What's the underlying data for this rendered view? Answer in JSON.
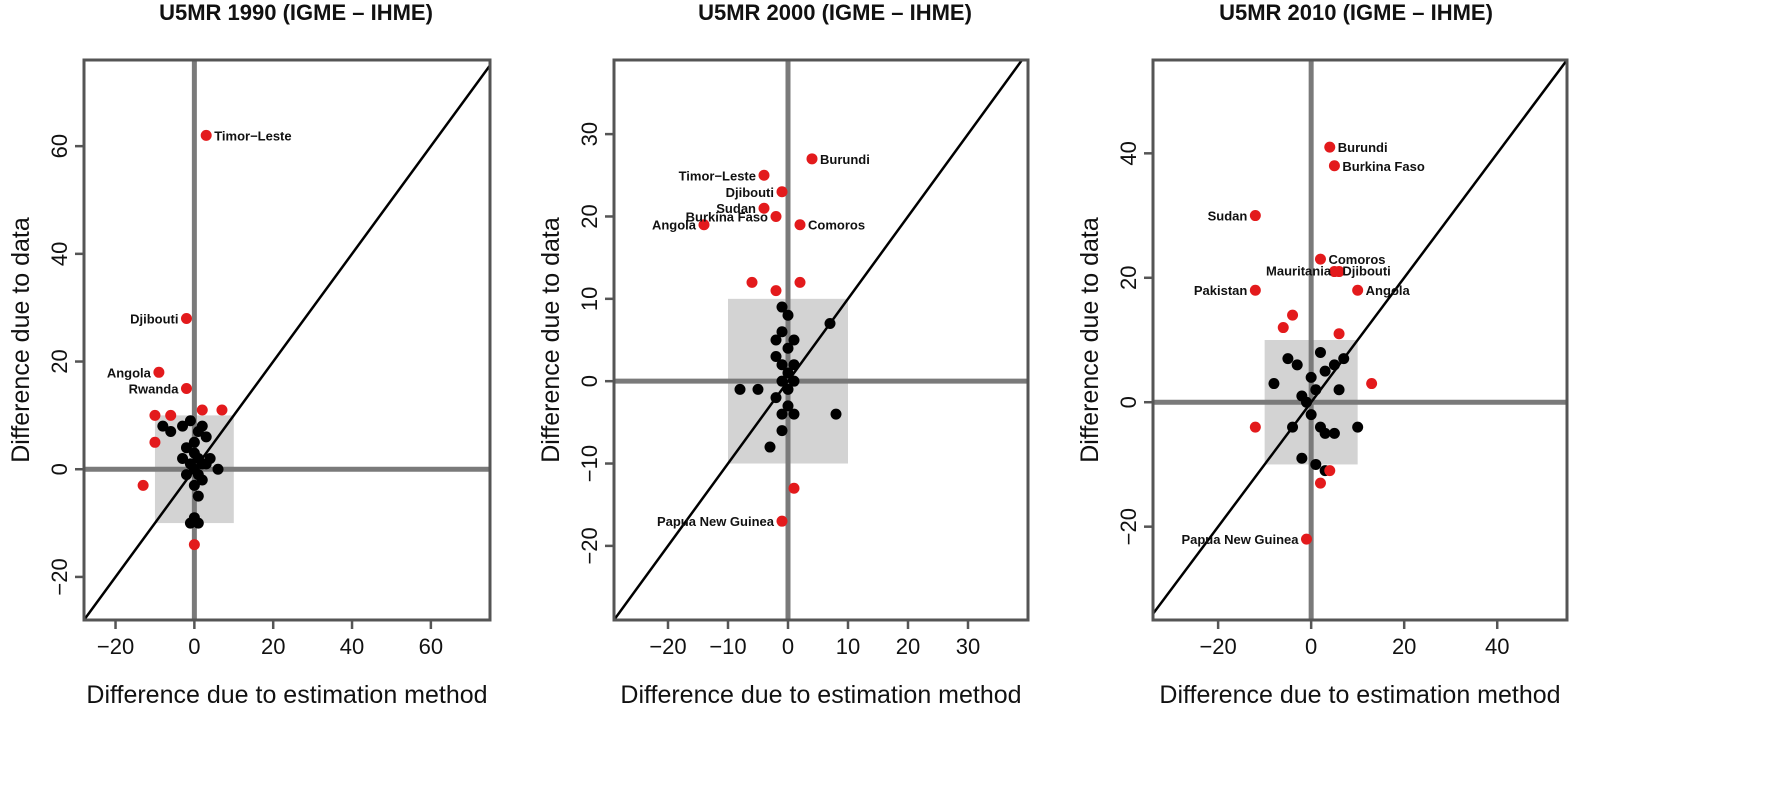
{
  "chart_data": [
    {
      "type": "scatter",
      "title": "U5MR 1990 (IGME – IHME)",
      "xlabel": "Difference due to estimation method",
      "ylabel": "Difference due to data",
      "xlim": [
        -28,
        75
      ],
      "ylim": [
        -28,
        76
      ],
      "xticks": [
        -20,
        0,
        20,
        40,
        60
      ],
      "yticks": [
        -20,
        0,
        20,
        40,
        60
      ],
      "box": {
        "x": [
          -10,
          10
        ],
        "y": [
          -10,
          10
        ]
      },
      "series": [
        {
          "color": "#000000",
          "points": [
            [
              -8,
              8
            ],
            [
              -6,
              7
            ],
            [
              -3,
              8
            ],
            [
              -1,
              9
            ],
            [
              0,
              5
            ],
            [
              1,
              7
            ],
            [
              2,
              8
            ],
            [
              3,
              6
            ],
            [
              -2,
              4
            ],
            [
              0,
              3
            ],
            [
              1,
              2
            ],
            [
              2,
              1
            ],
            [
              -1,
              1
            ],
            [
              0,
              0
            ],
            [
              1,
              -1
            ],
            [
              -2,
              -1
            ],
            [
              3,
              1
            ],
            [
              4,
              2
            ],
            [
              2,
              -2
            ],
            [
              1,
              -5
            ],
            [
              0,
              -9
            ],
            [
              -1,
              -10
            ],
            [
              1,
              -10
            ],
            [
              6,
              0
            ],
            [
              0,
              -3
            ],
            [
              -3,
              2
            ]
          ]
        },
        {
          "color": "#e31a1c",
          "points": [
            [
              3,
              62
            ],
            [
              -2,
              28
            ],
            [
              -9,
              18
            ],
            [
              -2,
              15
            ],
            [
              -10,
              10
            ],
            [
              -6,
              10
            ],
            [
              2,
              11
            ],
            [
              7,
              11
            ],
            [
              -10,
              5
            ],
            [
              -13,
              -3
            ],
            [
              0,
              -14
            ]
          ]
        }
      ],
      "annotations": [
        {
          "text": "Timor−Leste",
          "x": 3,
          "y": 62
        },
        {
          "text": "Djibouti",
          "x": -2,
          "y": 28
        },
        {
          "text": "Angola",
          "x": -9,
          "y": 18
        },
        {
          "text": "Rwanda",
          "x": -2,
          "y": 15
        }
      ]
    },
    {
      "type": "scatter",
      "title": "U5MR 2000 (IGME – IHME)",
      "xlabel": "Difference due to estimation method",
      "ylabel": "Difference due to data",
      "xlim": [
        -29,
        40
      ],
      "ylim": [
        -29,
        39
      ],
      "xticks": [
        -20,
        -10,
        0,
        10,
        20,
        30
      ],
      "yticks": [
        -20,
        -10,
        0,
        10,
        20,
        30
      ],
      "box": {
        "x": [
          -10,
          10
        ],
        "y": [
          -10,
          10
        ]
      },
      "series": [
        {
          "color": "#000000",
          "points": [
            [
              -1,
              9
            ],
            [
              0,
              8
            ],
            [
              -2,
              5
            ],
            [
              -1,
              6
            ],
            [
              1,
              5
            ],
            [
              0,
              4
            ],
            [
              -2,
              3
            ],
            [
              -1,
              2
            ],
            [
              1,
              2
            ],
            [
              0,
              1
            ],
            [
              -1,
              0
            ],
            [
              1,
              0
            ],
            [
              -8,
              -1
            ],
            [
              -5,
              -1
            ],
            [
              0,
              -1
            ],
            [
              7,
              7
            ],
            [
              8,
              -4
            ],
            [
              -1,
              -4
            ],
            [
              -1,
              -6
            ],
            [
              -3,
              -8
            ],
            [
              -2,
              -2
            ],
            [
              0,
              -3
            ],
            [
              1,
              -4
            ]
          ]
        },
        {
          "color": "#e31a1c",
          "points": [
            [
              4,
              27
            ],
            [
              -4,
              25
            ],
            [
              -1,
              23
            ],
            [
              -4,
              21
            ],
            [
              -2,
              20
            ],
            [
              -14,
              19
            ],
            [
              2,
              19
            ],
            [
              -6,
              12
            ],
            [
              2,
              12
            ],
            [
              -2,
              11
            ],
            [
              1,
              -13
            ],
            [
              -1,
              -17
            ]
          ]
        }
      ],
      "annotations": [
        {
          "text": "Burundi",
          "x": 4,
          "y": 27
        },
        {
          "text": "Timor−Leste",
          "x": -4,
          "y": 25
        },
        {
          "text": "Djibouti",
          "x": -1,
          "y": 23
        },
        {
          "text": "Sudan",
          "x": -4,
          "y": 21
        },
        {
          "text": "Burkina Faso",
          "x": -2,
          "y": 20
        },
        {
          "text": "Angola",
          "x": -14,
          "y": 19
        },
        {
          "text": "Comoros",
          "x": 2,
          "y": 19
        },
        {
          "text": "Papua New Guinea",
          "x": -1,
          "y": -17
        }
      ]
    },
    {
      "type": "scatter",
      "title": "U5MR 2010 (IGME – IHME)",
      "xlabel": "Difference due to estimation method",
      "ylabel": "Difference due to data",
      "xlim": [
        -34,
        55
      ],
      "ylim": [
        -35,
        55
      ],
      "xticks": [
        -20,
        0,
        20,
        40
      ],
      "yticks": [
        -20,
        0,
        20,
        40
      ],
      "box": {
        "x": [
          -10,
          10
        ],
        "y": [
          -10,
          10
        ]
      },
      "series": [
        {
          "color": "#000000",
          "points": [
            [
              -8,
              3
            ],
            [
              -5,
              7
            ],
            [
              -3,
              6
            ],
            [
              0,
              4
            ],
            [
              2,
              8
            ],
            [
              3,
              5
            ],
            [
              5,
              6
            ],
            [
              7,
              7
            ],
            [
              1,
              2
            ],
            [
              -1,
              0
            ],
            [
              0,
              -2
            ],
            [
              2,
              -4
            ],
            [
              3,
              -5
            ],
            [
              -4,
              -4
            ],
            [
              -2,
              -9
            ],
            [
              1,
              -10
            ],
            [
              3,
              -11
            ],
            [
              5,
              -5
            ],
            [
              10,
              -4
            ],
            [
              -2,
              1
            ],
            [
              6,
              2
            ]
          ]
        },
        {
          "color": "#e31a1c",
          "points": [
            [
              4,
              41
            ],
            [
              5,
              38
            ],
            [
              -12,
              30
            ],
            [
              2,
              23
            ],
            [
              6,
              21
            ],
            [
              5,
              21
            ],
            [
              -12,
              18
            ],
            [
              10,
              18
            ],
            [
              -4,
              14
            ],
            [
              -6,
              12
            ],
            [
              6,
              11
            ],
            [
              13,
              3
            ],
            [
              -12,
              -4
            ],
            [
              4,
              -11
            ],
            [
              2,
              -13
            ],
            [
              -1,
              -22
            ]
          ]
        }
      ],
      "annotations": [
        {
          "text": "Burundi",
          "x": 4,
          "y": 41
        },
        {
          "text": "Burkina Faso",
          "x": 5,
          "y": 38
        },
        {
          "text": "Sudan",
          "x": -12,
          "y": 30
        },
        {
          "text": "Comoros",
          "x": 2,
          "y": 23
        },
        {
          "text": "Mauritania",
          "x": 6,
          "y": 21
        },
        {
          "text": "Djibouti",
          "x": 5,
          "y": 21
        },
        {
          "text": "Pakistan",
          "x": -12,
          "y": 18
        },
        {
          "text": "Angola",
          "x": 10,
          "y": 18
        },
        {
          "text": "Papua New Guinea",
          "x": -1,
          "y": -22
        }
      ]
    }
  ]
}
